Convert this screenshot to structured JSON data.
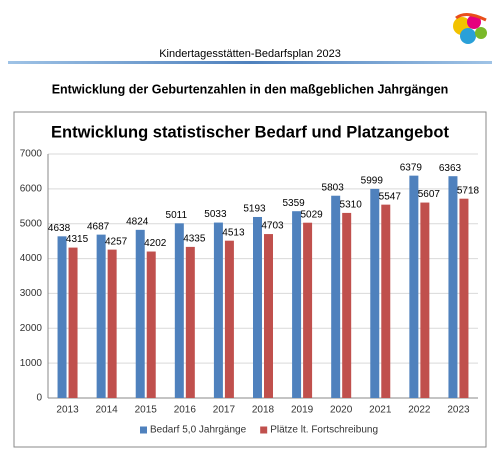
{
  "header": {
    "title": "Kindertagesstätten-Bedarfsplan 2023"
  },
  "heading": "Entwicklung der Geburtenzahlen in den maßgeblichen Jahrgängen",
  "chart_data": {
    "type": "bar",
    "title": "Entwicklung statistischer Bedarf und Platzangebot",
    "categories": [
      "2013",
      "2014",
      "2015",
      "2016",
      "2017",
      "2018",
      "2019",
      "2020",
      "2021",
      "2022",
      "2023"
    ],
    "series": [
      {
        "name": "Bedarf 5,0 Jahrgänge",
        "color": "#4f81bd",
        "values": [
          4638,
          4687,
          4824,
          5011,
          5033,
          5193,
          5359,
          5803,
          5999,
          6379,
          6363
        ]
      },
      {
        "name": "Plätze lt. Fortschreibung",
        "color": "#c0504d",
        "values": [
          4315,
          4257,
          4202,
          4335,
          4513,
          4703,
          5029,
          5310,
          5547,
          5607,
          5718
        ]
      }
    ],
    "ylim": [
      0,
      7000
    ],
    "yticks": [
      0,
      1000,
      2000,
      3000,
      4000,
      5000,
      6000,
      7000
    ],
    "grid": true,
    "legend": "bottom"
  }
}
